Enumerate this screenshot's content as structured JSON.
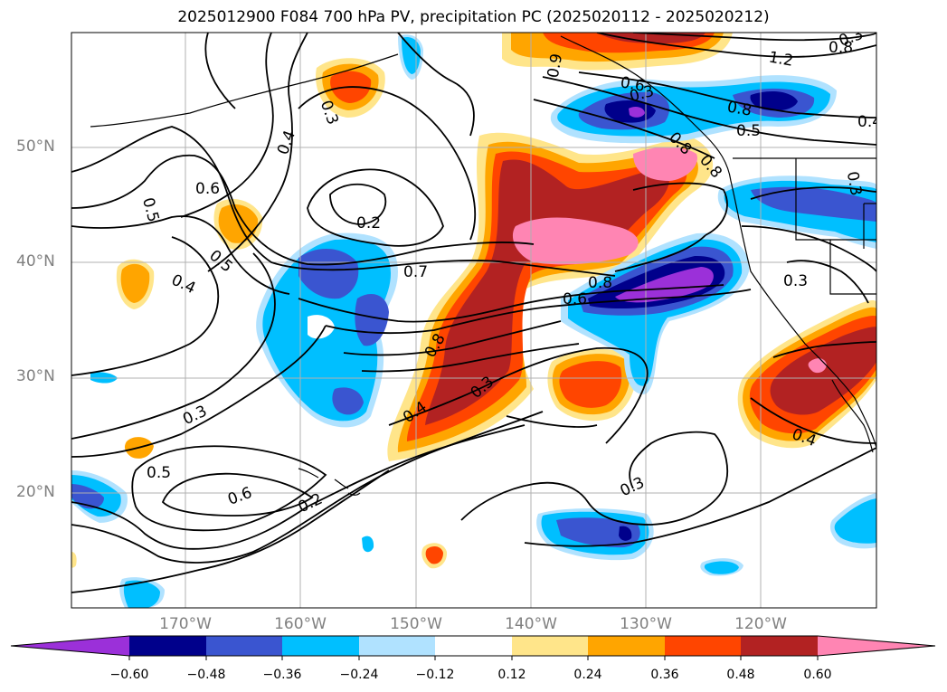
{
  "title": "2025012900 F084 700 hPa PV, precipitation PC (2025020112 - 2025020212)",
  "map": {
    "lat_labels": [
      "50°N",
      "40°N",
      "30°N",
      "20°N"
    ],
    "lon_labels": [
      "170°W",
      "160°W",
      "150°W",
      "140°W",
      "130°W",
      "120°W"
    ],
    "contour_labels": [
      "0.6",
      "0.5",
      "0.4",
      "0.3",
      "0.2",
      "0.7",
      "0.8",
      "0.6",
      "0.3",
      "0.4",
      "0.5",
      "0.4",
      "0.3",
      "0.5",
      "0.6",
      "0.2",
      "0.8",
      "0.3",
      "0.4",
      "0.8",
      "0.6",
      "0.3",
      "0.8",
      "0.5",
      "1.2",
      "0.8",
      "0.3",
      "0.4",
      "0.3",
      "0.8",
      "0.9",
      "0.3"
    ]
  },
  "colorbar": {
    "labels": [
      "−0.60",
      "−0.48",
      "−0.36",
      "−0.24",
      "−0.12",
      "0.12",
      "0.24",
      "0.36",
      "0.48",
      "0.60"
    ],
    "colors": [
      "#9b30d9",
      "#00008b",
      "#3a55d0",
      "#00bfff",
      "#b0e2ff",
      "#ffffff",
      "#ffe58a",
      "#ffa500",
      "#ff4500",
      "#b22222",
      "#ff85b3"
    ]
  }
}
